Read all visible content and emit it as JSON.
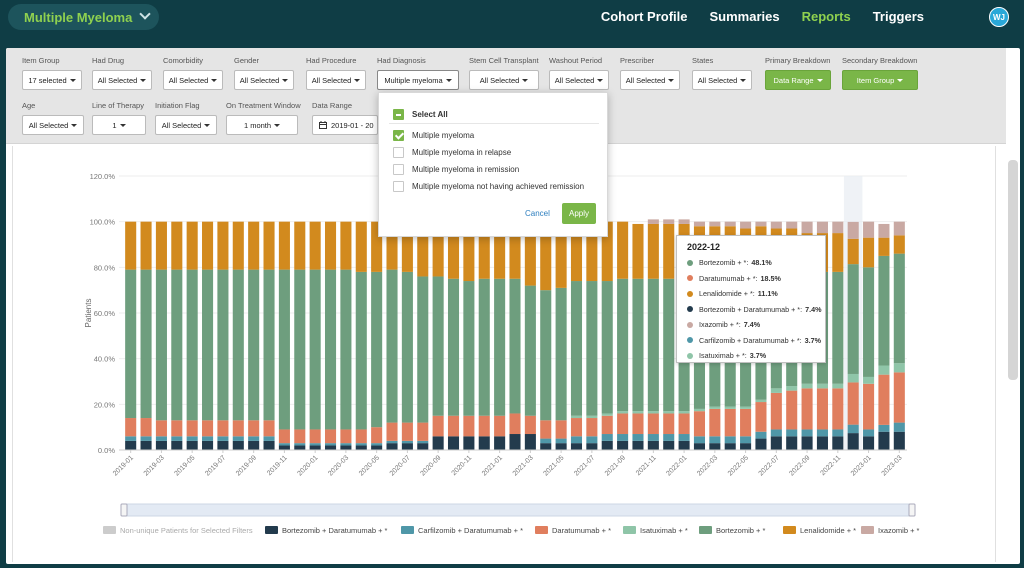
{
  "nav": {
    "project": "Multiple Myeloma",
    "links": [
      {
        "label": "Cohort Profile",
        "active": false
      },
      {
        "label": "Summaries",
        "active": false
      },
      {
        "label": "Reports",
        "active": true
      },
      {
        "label": "Triggers",
        "active": false
      }
    ],
    "user_initials": "WJ"
  },
  "filters": {
    "row1": [
      {
        "label": "Item Group",
        "value": "17 selected"
      },
      {
        "label": "Had Drug",
        "value": "All Selected"
      },
      {
        "label": "Comorbidity",
        "value": "All Selected"
      },
      {
        "label": "Gender",
        "value": "All Selected"
      },
      {
        "label": "Had Procedure",
        "value": "All Selected"
      },
      {
        "label": "Had Diagnosis",
        "value": "Multiple myeloma"
      },
      {
        "label": "Stem Cell Transplant",
        "value": "All Selected"
      },
      {
        "label": "Washout Period",
        "value": "All Selected"
      },
      {
        "label": "Prescriber",
        "value": "All Selected"
      },
      {
        "label": "States",
        "value": "All Selected"
      },
      {
        "label": "Primary Breakdown",
        "value": "Data Range"
      },
      {
        "label": "Secondary Breakdown",
        "value": "Item Group"
      }
    ],
    "row2": [
      {
        "label": "Age",
        "value": "All Selected"
      },
      {
        "label": "Line of Therapy",
        "value": "1"
      },
      {
        "label": "Initiation Flag",
        "value": "All Selected"
      },
      {
        "label": "On Treatment Window",
        "value": "1 month"
      },
      {
        "label": "Data Range",
        "value": "2019-01 - 20"
      }
    ]
  },
  "dropdown": {
    "select_all": "Select All",
    "options": [
      {
        "label": "Multiple myeloma",
        "checked": true
      },
      {
        "label": "Multiple myeloma in relapse",
        "checked": false
      },
      {
        "label": "Multiple myeloma in remission",
        "checked": false
      },
      {
        "label": "Multiple myeloma not having achieved remission",
        "checked": false
      }
    ],
    "cancel": "Cancel",
    "apply": "Apply"
  },
  "tooltip": {
    "title": "2022-12",
    "rows": [
      {
        "label": "Bortezomib + *: ",
        "value": "48.1%",
        "color": "#6e9e7e"
      },
      {
        "label": "Daratumumab + *: ",
        "value": "18.5%",
        "color": "#e07e5e"
      },
      {
        "label": "Lenalidomide + *: ",
        "value": "11.1%",
        "color": "#d28a1e"
      },
      {
        "label": "Bortezomib + Daratumumab + *: ",
        "value": "7.4%",
        "color": "#233b4d"
      },
      {
        "label": "Ixazomib + *: ",
        "value": "7.4%",
        "color": "#c9a9a3"
      },
      {
        "label": "Carfilzomib + Daratumumab + *: ",
        "value": "3.7%",
        "color": "#4f97a8"
      },
      {
        "label": "Isatuximab + *: ",
        "value": "3.7%",
        "color": "#8fc5a8"
      }
    ]
  },
  "chart_data": {
    "type": "bar",
    "stacked": true,
    "ylabel": "Patients",
    "ylim": [
      0,
      120
    ],
    "y_ticks": [
      "0.0%",
      "20.0%",
      "40.0%",
      "60.0%",
      "80.0%",
      "100.0%",
      "120.0%"
    ],
    "x_tick_labels": [
      "2019-01",
      "2019-03",
      "2019-05",
      "2019-07",
      "2019-09",
      "2019-11",
      "2020-01",
      "2020-03",
      "2020-05",
      "2020-07",
      "2020-09",
      "2020-11",
      "2021-01",
      "2021-03",
      "2021-05",
      "2021-07",
      "2021-09",
      "2021-11",
      "2022-01",
      "2022-03",
      "2022-05",
      "2022-07",
      "2022-09",
      "2022-11",
      "2023-01",
      "2023-03"
    ],
    "categories": [
      "2019-01",
      "2019-02",
      "2019-03",
      "2019-04",
      "2019-05",
      "2019-06",
      "2019-07",
      "2019-08",
      "2019-09",
      "2019-10",
      "2019-11",
      "2019-12",
      "2020-01",
      "2020-02",
      "2020-03",
      "2020-04",
      "2020-05",
      "2020-06",
      "2020-07",
      "2020-08",
      "2020-09",
      "2020-10",
      "2020-11",
      "2020-12",
      "2021-01",
      "2021-02",
      "2021-03",
      "2021-04",
      "2021-05",
      "2021-06",
      "2021-07",
      "2021-08",
      "2021-09",
      "2021-10",
      "2021-11",
      "2021-12",
      "2022-01",
      "2022-02",
      "2022-03",
      "2022-04",
      "2022-05",
      "2022-06",
      "2022-07",
      "2022-08",
      "2022-09",
      "2022-10",
      "2022-11",
      "2022-12",
      "2023-01",
      "2023-02",
      "2023-03"
    ],
    "series": [
      {
        "name": "Non-unique Patients for Selected Filters",
        "color": "#cccccc",
        "values": [
          0,
          0,
          0,
          0,
          0,
          0,
          0,
          0,
          0,
          0,
          0,
          0,
          0,
          0,
          0,
          0,
          0,
          0,
          0,
          0,
          0,
          0,
          0,
          0,
          0,
          0,
          0,
          0,
          0,
          0,
          0,
          0,
          0,
          0,
          0,
          0,
          0,
          0,
          0,
          0,
          0,
          0,
          0,
          0,
          0,
          0,
          0,
          0,
          0,
          0,
          0
        ]
      },
      {
        "name": "Bortezomib + Daratumumab + *",
        "color": "#233b4d",
        "values": [
          4,
          4,
          4,
          4,
          4,
          4,
          4,
          4,
          4,
          4,
          2,
          2,
          2,
          2,
          2,
          2,
          2,
          3,
          3,
          3,
          6,
          6,
          6,
          6,
          6,
          7,
          7,
          3,
          3,
          3,
          3,
          4,
          4,
          4,
          4,
          4,
          4,
          3,
          3,
          3,
          3,
          5,
          6,
          6,
          6,
          6,
          6,
          7.4,
          6,
          8,
          8
        ]
      },
      {
        "name": "Carfilzomib + Daratumumab + *",
        "color": "#4f97a8",
        "values": [
          2,
          2,
          2,
          2,
          2,
          2,
          2,
          2,
          2,
          2,
          1,
          1,
          1,
          1,
          1,
          1,
          1,
          1,
          1,
          1,
          0,
          0,
          0,
          0,
          0,
          0,
          0,
          2,
          2,
          3,
          3,
          3,
          3,
          3,
          3,
          3,
          3,
          3,
          3,
          3,
          3,
          3,
          3,
          3,
          3,
          3,
          3,
          3.7,
          3,
          3,
          4
        ]
      },
      {
        "name": "Daratumumab + *",
        "color": "#e07e5e",
        "values": [
          8,
          8,
          7,
          7,
          7,
          7,
          7,
          7,
          7,
          7,
          6,
          6,
          6,
          6,
          6,
          6,
          7,
          8,
          8,
          8,
          9,
          9,
          9,
          9,
          9,
          9,
          8,
          8,
          8,
          8,
          8,
          8,
          9,
          9,
          9,
          9,
          9,
          11,
          12,
          12,
          12,
          13,
          16,
          17,
          18,
          18,
          18,
          18.5,
          20,
          22,
          22
        ]
      },
      {
        "name": "Isatuximab + *",
        "color": "#8fc5a8",
        "values": [
          0,
          0,
          0,
          0,
          0,
          0,
          0,
          0,
          0,
          0,
          0,
          0,
          0,
          0,
          0,
          0,
          0,
          0,
          0,
          0,
          0,
          0,
          0,
          0,
          0,
          0,
          0,
          0,
          0,
          1,
          1,
          1,
          1,
          1,
          1,
          1,
          1,
          1,
          1,
          1,
          1,
          1,
          2,
          2,
          2,
          2,
          2,
          3.7,
          3,
          4,
          4
        ]
      },
      {
        "name": "Bortezomib + *",
        "color": "#6e9e7e",
        "values": [
          65,
          65,
          66,
          66,
          66,
          66,
          66,
          66,
          66,
          66,
          70,
          70,
          70,
          70,
          70,
          69,
          68,
          67,
          66,
          64,
          61,
          60,
          59,
          60,
          60,
          59,
          57,
          57,
          58,
          59,
          59,
          58,
          58,
          58,
          58,
          58,
          58,
          56,
          55,
          54,
          53,
          52,
          51,
          50,
          49,
          49,
          49,
          48.1,
          48,
          48,
          48
        ]
      },
      {
        "name": "Lenalidomide + *",
        "color": "#d28a1e",
        "values": [
          21,
          21,
          21,
          21,
          21,
          21,
          21,
          21,
          21,
          21,
          21,
          21,
          21,
          21,
          21,
          22,
          22,
          21,
          22,
          24,
          24,
          26,
          26,
          25,
          25,
          25,
          28,
          30,
          29,
          26,
          26,
          26,
          25,
          24,
          24,
          24,
          24,
          24,
          24,
          25,
          25,
          24,
          19,
          19,
          17,
          17,
          17,
          11.1,
          13,
          8,
          8
        ]
      },
      {
        "name": "Ixazomib + *",
        "color": "#c9a9a3",
        "values": [
          0,
          0,
          0,
          0,
          0,
          0,
          0,
          0,
          0,
          0,
          0,
          0,
          0,
          0,
          0,
          0,
          0,
          0,
          0,
          0,
          0,
          0,
          0,
          0,
          0,
          0,
          0,
          0,
          0,
          0,
          0,
          0,
          0,
          0,
          2,
          2,
          2,
          2,
          2,
          2,
          3,
          2,
          3,
          3,
          5,
          5,
          5,
          7.4,
          7,
          6,
          6
        ]
      }
    ]
  }
}
